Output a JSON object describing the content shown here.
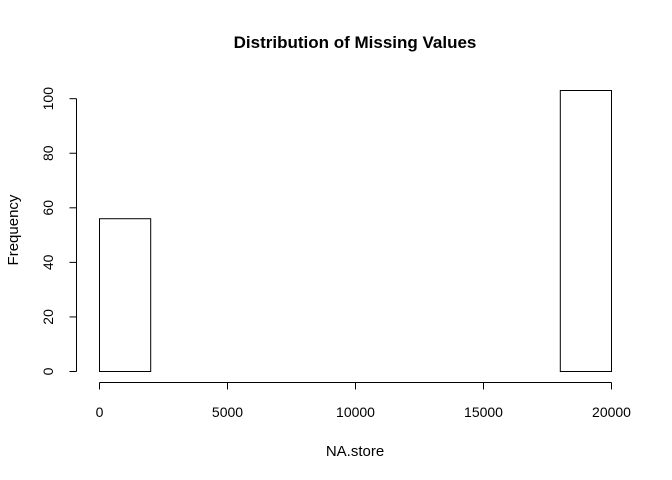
{
  "chart_data": {
    "type": "bar",
    "title": "Distribution of Missing Values",
    "xlabel": "NA.store",
    "ylabel": "Frequency",
    "bin_edges": [
      0,
      2000,
      4000,
      6000,
      8000,
      10000,
      12000,
      14000,
      16000,
      18000,
      20000
    ],
    "values": [
      56,
      0,
      0,
      0,
      0,
      0,
      0,
      0,
      0,
      103
    ],
    "xlim": [
      0,
      20000
    ],
    "ylim": [
      0,
      103
    ],
    "x_ticks": [
      0,
      5000,
      10000,
      15000,
      20000
    ],
    "y_ticks": [
      0,
      20,
      40,
      60,
      80,
      100
    ],
    "grid": false,
    "colors": {
      "bar_fill": "#ffffff",
      "bar_stroke": "#000000"
    }
  }
}
